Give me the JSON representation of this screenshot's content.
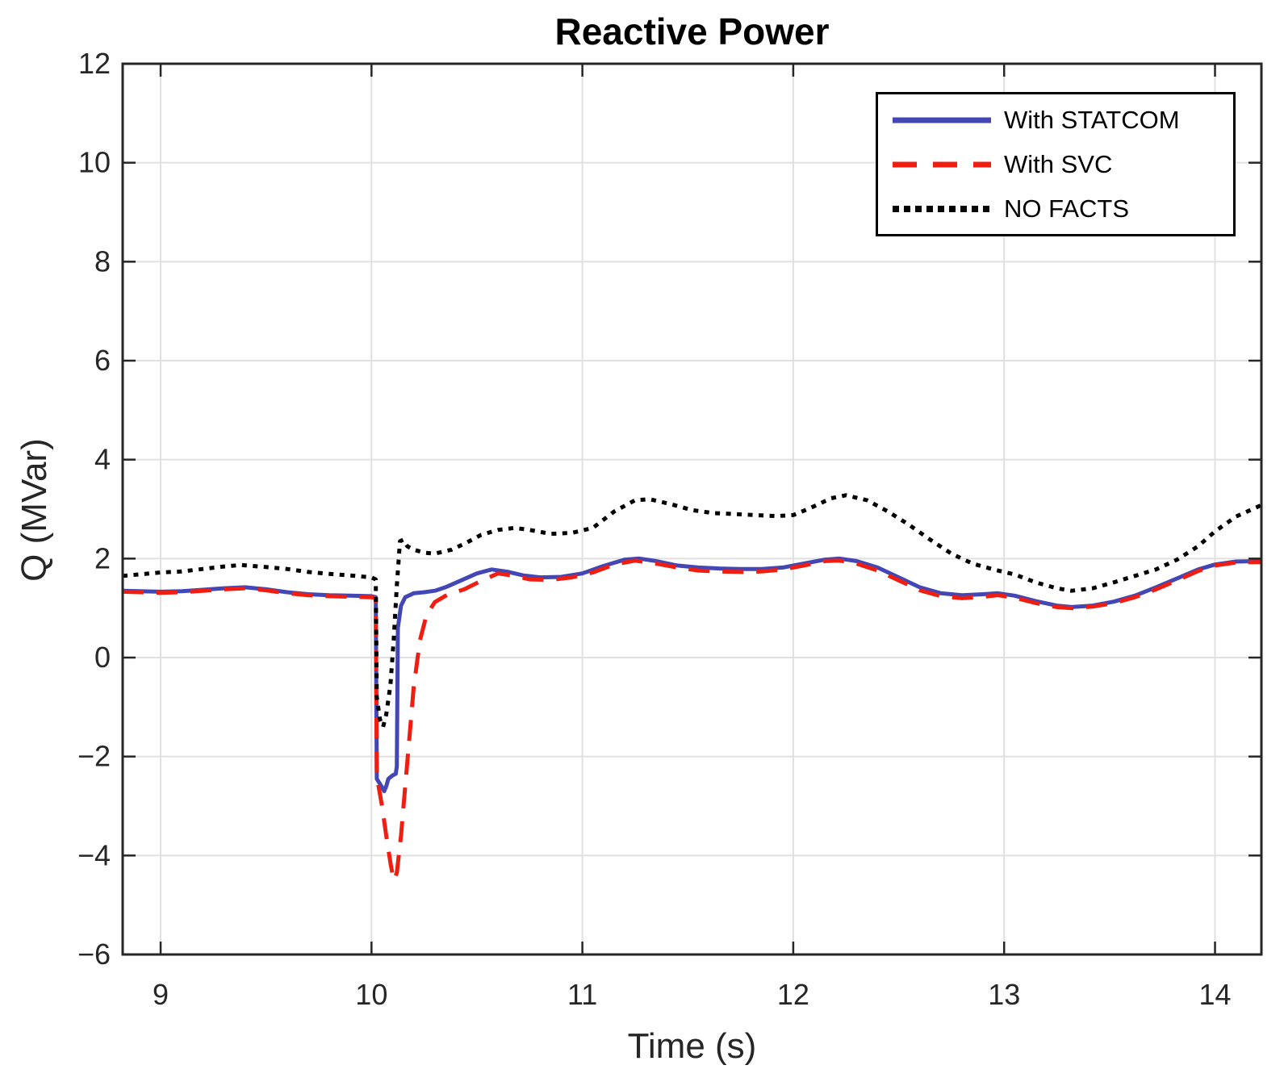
{
  "figure": {
    "title": "Reactive Power",
    "x_axis": {
      "label": "Time (s)",
      "ticks": [
        9,
        10,
        11,
        12,
        13,
        14
      ],
      "range": [
        8.82,
        14.22
      ]
    },
    "y_axis": {
      "label": "Q (MVar)",
      "ticks": [
        -6,
        -4,
        -2,
        0,
        2,
        4,
        6,
        8,
        10,
        12
      ],
      "range": [
        -6,
        12
      ]
    },
    "legend": {
      "position": "top-right",
      "items": [
        {
          "label": "With STATCOM",
          "color": "#4247b5",
          "style": "solid"
        },
        {
          "label": "With SVC",
          "color": "#f01e11",
          "style": "dashed"
        },
        {
          "label": "NO FACTS",
          "color": "#000000",
          "style": "dotted"
        }
      ]
    },
    "colors": {
      "grid": "#e0e0e0",
      "frame": "#262626",
      "tick_text": "#262626",
      "background": "#ffffff"
    }
  },
  "chart_data": {
    "type": "line",
    "title": "Reactive Power",
    "xlabel": "Time (s)",
    "ylabel": "Q (MVar)",
    "xlim": [
      8.82,
      14.22
    ],
    "ylim": [
      -6,
      12
    ],
    "grid": true,
    "legend_position": "top-right",
    "series": [
      {
        "name": "With STATCOM",
        "color": "#4247b5",
        "style": "solid",
        "width": 5,
        "points": [
          [
            8.82,
            1.35
          ],
          [
            9.0,
            1.33
          ],
          [
            9.1,
            1.34
          ],
          [
            9.2,
            1.37
          ],
          [
            9.3,
            1.4
          ],
          [
            9.4,
            1.42
          ],
          [
            9.5,
            1.38
          ],
          [
            9.6,
            1.32
          ],
          [
            9.7,
            1.28
          ],
          [
            9.8,
            1.26
          ],
          [
            9.9,
            1.25
          ],
          [
            10.0,
            1.24
          ],
          [
            10.02,
            1.22
          ],
          [
            10.025,
            -2.45
          ],
          [
            10.05,
            -2.62
          ],
          [
            10.06,
            -2.7
          ],
          [
            10.07,
            -2.6
          ],
          [
            10.08,
            -2.45
          ],
          [
            10.1,
            -2.38
          ],
          [
            10.115,
            -2.35
          ],
          [
            10.12,
            -2.2
          ],
          [
            10.125,
            0.6
          ],
          [
            10.14,
            1.05
          ],
          [
            10.16,
            1.22
          ],
          [
            10.2,
            1.3
          ],
          [
            10.25,
            1.32
          ],
          [
            10.3,
            1.35
          ],
          [
            10.35,
            1.42
          ],
          [
            10.42,
            1.55
          ],
          [
            10.5,
            1.7
          ],
          [
            10.57,
            1.78
          ],
          [
            10.65,
            1.73
          ],
          [
            10.72,
            1.66
          ],
          [
            10.8,
            1.62
          ],
          [
            10.9,
            1.63
          ],
          [
            11.0,
            1.7
          ],
          [
            11.1,
            1.85
          ],
          [
            11.2,
            1.98
          ],
          [
            11.27,
            2.0
          ],
          [
            11.35,
            1.95
          ],
          [
            11.45,
            1.86
          ],
          [
            11.55,
            1.82
          ],
          [
            11.65,
            1.8
          ],
          [
            11.75,
            1.79
          ],
          [
            11.85,
            1.79
          ],
          [
            11.95,
            1.82
          ],
          [
            12.05,
            1.9
          ],
          [
            12.15,
            1.98
          ],
          [
            12.22,
            2.0
          ],
          [
            12.3,
            1.95
          ],
          [
            12.4,
            1.82
          ],
          [
            12.5,
            1.62
          ],
          [
            12.6,
            1.42
          ],
          [
            12.7,
            1.3
          ],
          [
            12.8,
            1.26
          ],
          [
            12.9,
            1.28
          ],
          [
            12.97,
            1.3
          ],
          [
            13.05,
            1.25
          ],
          [
            13.15,
            1.14
          ],
          [
            13.25,
            1.05
          ],
          [
            13.32,
            1.02
          ],
          [
            13.42,
            1.05
          ],
          [
            13.52,
            1.13
          ],
          [
            13.62,
            1.25
          ],
          [
            13.72,
            1.42
          ],
          [
            13.82,
            1.6
          ],
          [
            13.92,
            1.78
          ],
          [
            14.0,
            1.88
          ],
          [
            14.1,
            1.94
          ],
          [
            14.22,
            1.95
          ]
        ]
      },
      {
        "name": "With SVC",
        "color": "#f01e11",
        "style": "dashed",
        "width": 5,
        "points": [
          [
            8.82,
            1.33
          ],
          [
            9.0,
            1.31
          ],
          [
            9.1,
            1.32
          ],
          [
            9.2,
            1.35
          ],
          [
            9.3,
            1.38
          ],
          [
            9.4,
            1.4
          ],
          [
            9.5,
            1.36
          ],
          [
            9.6,
            1.3
          ],
          [
            9.7,
            1.26
          ],
          [
            9.8,
            1.24
          ],
          [
            9.9,
            1.23
          ],
          [
            10.0,
            1.22
          ],
          [
            10.02,
            1.2
          ],
          [
            10.025,
            -2.4
          ],
          [
            10.05,
            -3.0
          ],
          [
            10.07,
            -3.6
          ],
          [
            10.09,
            -4.15
          ],
          [
            10.105,
            -4.5
          ],
          [
            10.12,
            -4.35
          ],
          [
            10.14,
            -3.6
          ],
          [
            10.16,
            -2.6
          ],
          [
            10.18,
            -1.6
          ],
          [
            10.2,
            -0.6
          ],
          [
            10.23,
            0.35
          ],
          [
            10.26,
            0.85
          ],
          [
            10.3,
            1.12
          ],
          [
            10.36,
            1.27
          ],
          [
            10.44,
            1.38
          ],
          [
            10.52,
            1.55
          ],
          [
            10.6,
            1.7
          ],
          [
            10.68,
            1.65
          ],
          [
            10.75,
            1.58
          ],
          [
            10.85,
            1.57
          ],
          [
            10.95,
            1.62
          ],
          [
            11.05,
            1.72
          ],
          [
            11.15,
            1.88
          ],
          [
            11.25,
            1.96
          ],
          [
            11.35,
            1.9
          ],
          [
            11.45,
            1.82
          ],
          [
            11.55,
            1.76
          ],
          [
            11.65,
            1.74
          ],
          [
            11.75,
            1.73
          ],
          [
            11.85,
            1.74
          ],
          [
            11.95,
            1.78
          ],
          [
            12.05,
            1.86
          ],
          [
            12.15,
            1.95
          ],
          [
            12.22,
            1.96
          ],
          [
            12.3,
            1.9
          ],
          [
            12.4,
            1.76
          ],
          [
            12.5,
            1.56
          ],
          [
            12.6,
            1.36
          ],
          [
            12.7,
            1.24
          ],
          [
            12.8,
            1.2
          ],
          [
            12.9,
            1.23
          ],
          [
            12.97,
            1.26
          ],
          [
            13.05,
            1.21
          ],
          [
            13.15,
            1.1
          ],
          [
            13.25,
            1.02
          ],
          [
            13.32,
            1.0
          ],
          [
            13.42,
            1.03
          ],
          [
            13.52,
            1.1
          ],
          [
            13.62,
            1.22
          ],
          [
            13.72,
            1.38
          ],
          [
            13.82,
            1.56
          ],
          [
            13.92,
            1.75
          ],
          [
            14.0,
            1.86
          ],
          [
            14.1,
            1.92
          ],
          [
            14.22,
            1.93
          ]
        ]
      },
      {
        "name": "NO FACTS",
        "color": "#000000",
        "style": "dotted",
        "width": 5,
        "points": [
          [
            8.82,
            1.65
          ],
          [
            9.0,
            1.72
          ],
          [
            9.1,
            1.74
          ],
          [
            9.2,
            1.79
          ],
          [
            9.3,
            1.84
          ],
          [
            9.38,
            1.87
          ],
          [
            9.5,
            1.83
          ],
          [
            9.6,
            1.79
          ],
          [
            9.7,
            1.73
          ],
          [
            9.8,
            1.69
          ],
          [
            9.9,
            1.66
          ],
          [
            10.0,
            1.62
          ],
          [
            10.02,
            1.58
          ],
          [
            10.025,
            -0.8
          ],
          [
            10.04,
            -1.25
          ],
          [
            10.055,
            -1.4
          ],
          [
            10.07,
            -1.15
          ],
          [
            10.09,
            -0.55
          ],
          [
            10.105,
            0.35
          ],
          [
            10.12,
            1.45
          ],
          [
            10.135,
            2.35
          ],
          [
            10.15,
            2.38
          ],
          [
            10.17,
            2.25
          ],
          [
            10.2,
            2.18
          ],
          [
            10.25,
            2.12
          ],
          [
            10.3,
            2.1
          ],
          [
            10.38,
            2.18
          ],
          [
            10.45,
            2.32
          ],
          [
            10.52,
            2.48
          ],
          [
            10.6,
            2.58
          ],
          [
            10.68,
            2.62
          ],
          [
            10.75,
            2.58
          ],
          [
            10.85,
            2.5
          ],
          [
            10.95,
            2.52
          ],
          [
            11.05,
            2.62
          ],
          [
            11.15,
            2.95
          ],
          [
            11.25,
            3.18
          ],
          [
            11.32,
            3.2
          ],
          [
            11.42,
            3.1
          ],
          [
            11.52,
            2.98
          ],
          [
            11.62,
            2.92
          ],
          [
            11.72,
            2.9
          ],
          [
            11.82,
            2.88
          ],
          [
            11.92,
            2.86
          ],
          [
            12.0,
            2.88
          ],
          [
            12.08,
            3.02
          ],
          [
            12.18,
            3.22
          ],
          [
            12.25,
            3.28
          ],
          [
            12.35,
            3.18
          ],
          [
            12.45,
            2.95
          ],
          [
            12.55,
            2.68
          ],
          [
            12.65,
            2.38
          ],
          [
            12.75,
            2.1
          ],
          [
            12.85,
            1.9
          ],
          [
            12.95,
            1.78
          ],
          [
            13.05,
            1.68
          ],
          [
            13.15,
            1.52
          ],
          [
            13.25,
            1.4
          ],
          [
            13.32,
            1.35
          ],
          [
            13.42,
            1.4
          ],
          [
            13.52,
            1.52
          ],
          [
            13.62,
            1.65
          ],
          [
            13.72,
            1.78
          ],
          [
            13.82,
            1.98
          ],
          [
            13.92,
            2.25
          ],
          [
            14.0,
            2.55
          ],
          [
            14.1,
            2.85
          ],
          [
            14.22,
            3.08
          ]
        ]
      }
    ]
  }
}
